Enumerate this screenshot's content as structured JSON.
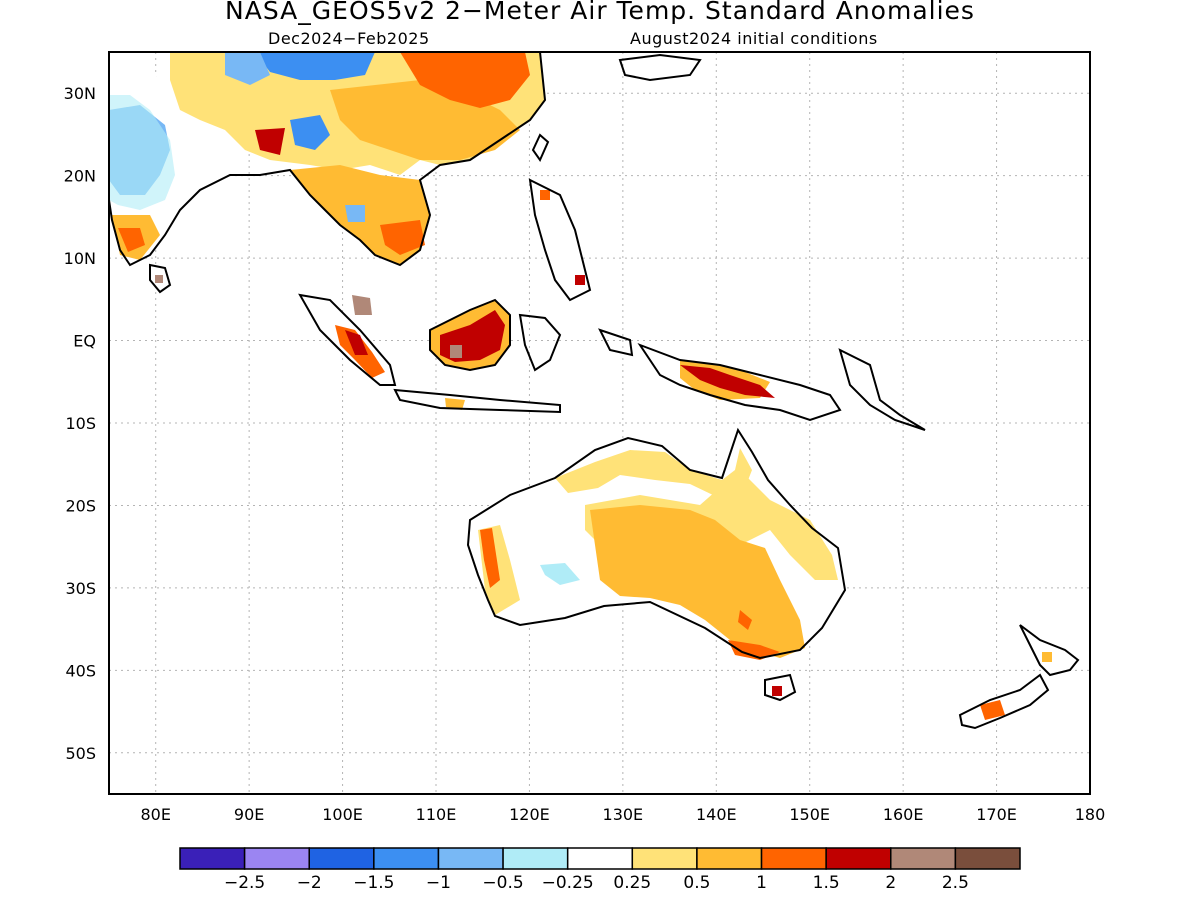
{
  "header": {
    "title": "NASA_GEOS5v2 2−Meter Air Temp. Standard Anomalies",
    "period": "Dec2024−Feb2025",
    "initial_conditions": "August2024 initial conditions"
  },
  "axes": {
    "lat_labels": [
      "30N",
      "20N",
      "10N",
      "EQ",
      "10S",
      "20S",
      "30S",
      "40S",
      "50S"
    ],
    "lat_values": [
      30,
      20,
      10,
      0,
      -10,
      -20,
      -30,
      -40,
      -50
    ],
    "lon_labels": [
      "80E",
      "90E",
      "100E",
      "110E",
      "120E",
      "130E",
      "140E",
      "150E",
      "160E",
      "170E",
      "180"
    ],
    "lon_values": [
      80,
      90,
      100,
      110,
      120,
      130,
      140,
      150,
      160,
      170,
      180
    ],
    "lon_range": [
      75,
      180
    ],
    "lat_range": [
      -55,
      35
    ],
    "grid": true
  },
  "colorbar": {
    "labels": [
      "−2.5",
      "−2",
      "−1.5",
      "−1",
      "−0.5",
      "−0.25",
      "0.25",
      "0.5",
      "1",
      "1.5",
      "2",
      "2.5"
    ],
    "colors": [
      "#3a20b8",
      "#9b85f2",
      "#1f63e3",
      "#3c8ff2",
      "#78b8f5",
      "#b0ecf7",
      "#ffffff",
      "#ffe278",
      "#ffbb33",
      "#ff6400",
      "#c00000",
      "#b08878",
      "#7a4e3c"
    ]
  },
  "legend": {
    "white": "#ffffff",
    "pale_yellow": "#ffe278",
    "orange": "#ffbb33",
    "dark_orange": "#ff6400",
    "red": "#c00000",
    "brown": "#b08878",
    "light_blue": "#78b8f5",
    "cyan": "#b0ecf7",
    "blue": "#3c8ff2",
    "coast": "#000000"
  }
}
